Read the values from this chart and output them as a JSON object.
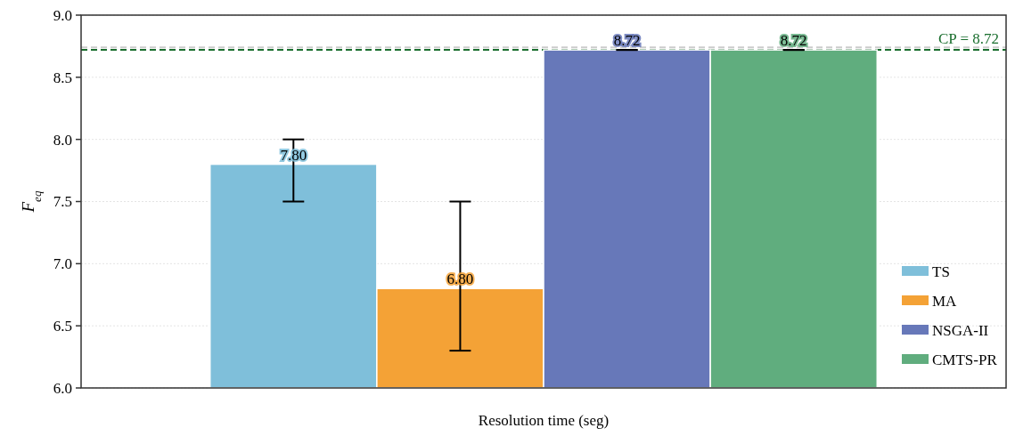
{
  "chart_data": {
    "type": "bar",
    "xlabel": "Resolution time (seg)",
    "ylabel": "F$_{eq}$",
    "categories": [
      null
    ],
    "series": [
      {
        "name": "TS",
        "color": "#7fbfda",
        "values": [
          7.8
        ],
        "errors": [
          [
            7.5,
            8.0
          ]
        ],
        "value_labels": [
          "7.80"
        ]
      },
      {
        "name": "MA",
        "color": "#f4a236",
        "values": [
          6.8
        ],
        "errors": [
          [
            6.3,
            7.5
          ]
        ],
        "value_labels": [
          "6.80"
        ]
      },
      {
        "name": "NSGA-II",
        "color": "#6778b9",
        "values": [
          8.72
        ],
        "errors": [
          0
        ],
        "value_labels": [
          "8.72"
        ]
      },
      {
        "name": "CMTS-PR",
        "color": "#60ad7e",
        "values": [
          8.72
        ],
        "errors": [
          0
        ],
        "value_labels": [
          "8.72"
        ]
      }
    ],
    "ylim": [
      6.0,
      9.0
    ],
    "yticks": [
      {
        "value": 6,
        "label": "6.0"
      },
      {
        "value": 6.5,
        "label": "6.5"
      },
      {
        "value": 7,
        "label": "7.0"
      },
      {
        "value": 7.5,
        "label": "7.5"
      },
      {
        "value": 8,
        "label": "8.0"
      },
      {
        "value": 8.5,
        "label": "8.5"
      },
      {
        "value": 9,
        "label": "9.0"
      }
    ],
    "ref_lines": [
      {
        "axis": "y",
        "value": 8.74,
        "color": "#cccccc",
        "line_style": "dashed"
      },
      {
        "axis": "y",
        "value": 8.72,
        "label": "CP = 8.72",
        "color": "#1a6e2e",
        "line_style": "dashed"
      }
    ],
    "grid": "y",
    "legend": "bottom right"
  }
}
